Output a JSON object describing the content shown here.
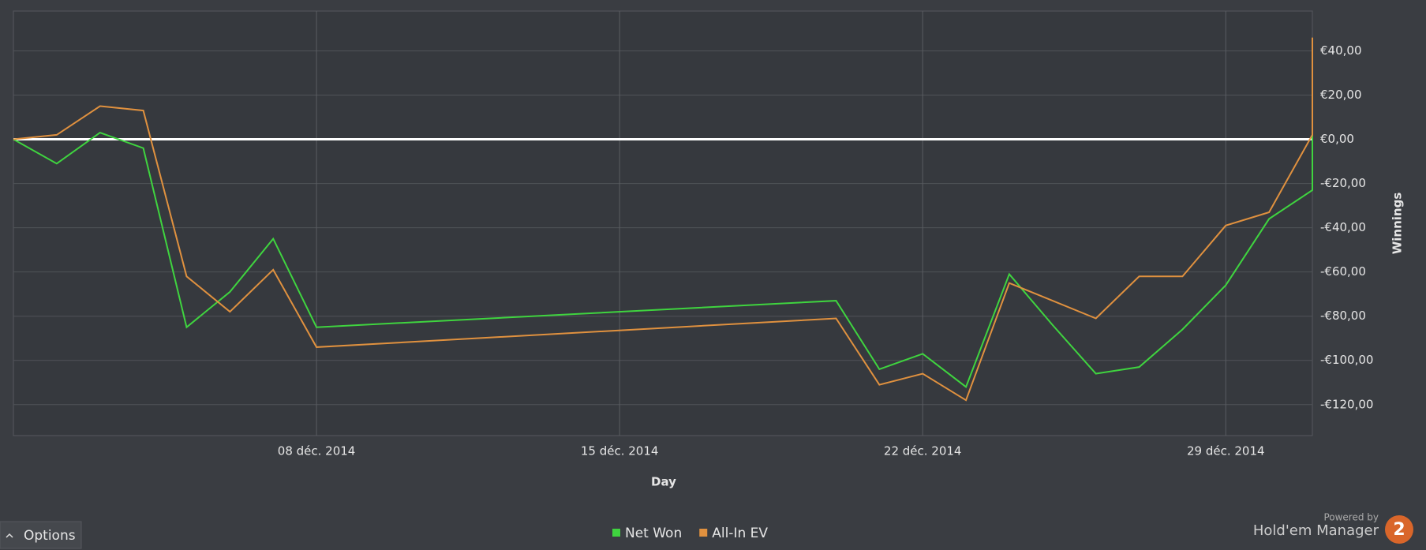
{
  "chart_data": {
    "type": "line",
    "x_label": "Day",
    "y_label": "Winnings",
    "x": [
      "2014-12-01",
      "2014-12-02",
      "2014-12-03",
      "2014-12-04",
      "2014-12-05",
      "2014-12-06",
      "2014-12-07",
      "2014-12-08",
      "2014-12-20",
      "2014-12-21",
      "2014-12-22",
      "2014-12-23",
      "2014-12-24",
      "2014-12-25",
      "2014-12-26",
      "2014-12-27",
      "2014-12-28",
      "2014-12-29",
      "2014-12-30",
      "2014-12-31",
      "2014-12-31"
    ],
    "series": [
      {
        "name": "Net Won",
        "color": "#3fd43f",
        "values": [
          0,
          -11,
          3,
          -4,
          -85,
          -69,
          -45,
          -85,
          -73,
          -104,
          -97,
          -112,
          -61,
          -84,
          -106,
          -103,
          -86,
          -66,
          -36,
          -23,
          28
        ]
      },
      {
        "name": "All-In EV",
        "color": "#e0913f",
        "values": [
          0,
          2,
          15,
          13,
          -62,
          -78,
          -59,
          -94,
          -81,
          -111,
          -106,
          -118,
          -65,
          -73,
          -81,
          -62,
          -62,
          -39,
          -33,
          2,
          46
        ]
      }
    ],
    "xlim": [
      "2014-12-01",
      "2014-12-31"
    ],
    "xticks": [
      {
        "value": "2014-12-08",
        "label": "08 déc. 2014"
      },
      {
        "value": "2014-12-15",
        "label": "15 déc. 2014"
      },
      {
        "value": "2014-12-22",
        "label": "22 déc. 2014"
      },
      {
        "value": "2014-12-29",
        "label": "29 déc. 2014"
      }
    ],
    "ylim": [
      -134,
      58
    ],
    "yticks": [
      {
        "value": 40,
        "label": "€40,00"
      },
      {
        "value": 20,
        "label": "€20,00"
      },
      {
        "value": 0,
        "label": "€0,00"
      },
      {
        "value": -20,
        "label": "-€20,00"
      },
      {
        "value": -40,
        "label": "-€40,00"
      },
      {
        "value": -60,
        "label": "-€60,00"
      },
      {
        "value": -80,
        "label": "-€80,00"
      },
      {
        "value": -100,
        "label": "-€100,00"
      },
      {
        "value": -120,
        "label": "-€120,00"
      }
    ],
    "grid": true,
    "zero_line": true,
    "legend": "bottom"
  },
  "ui": {
    "options_button": "Options",
    "powered_by": "Powered by",
    "product": "Hold'em Manager",
    "logo": "2"
  }
}
